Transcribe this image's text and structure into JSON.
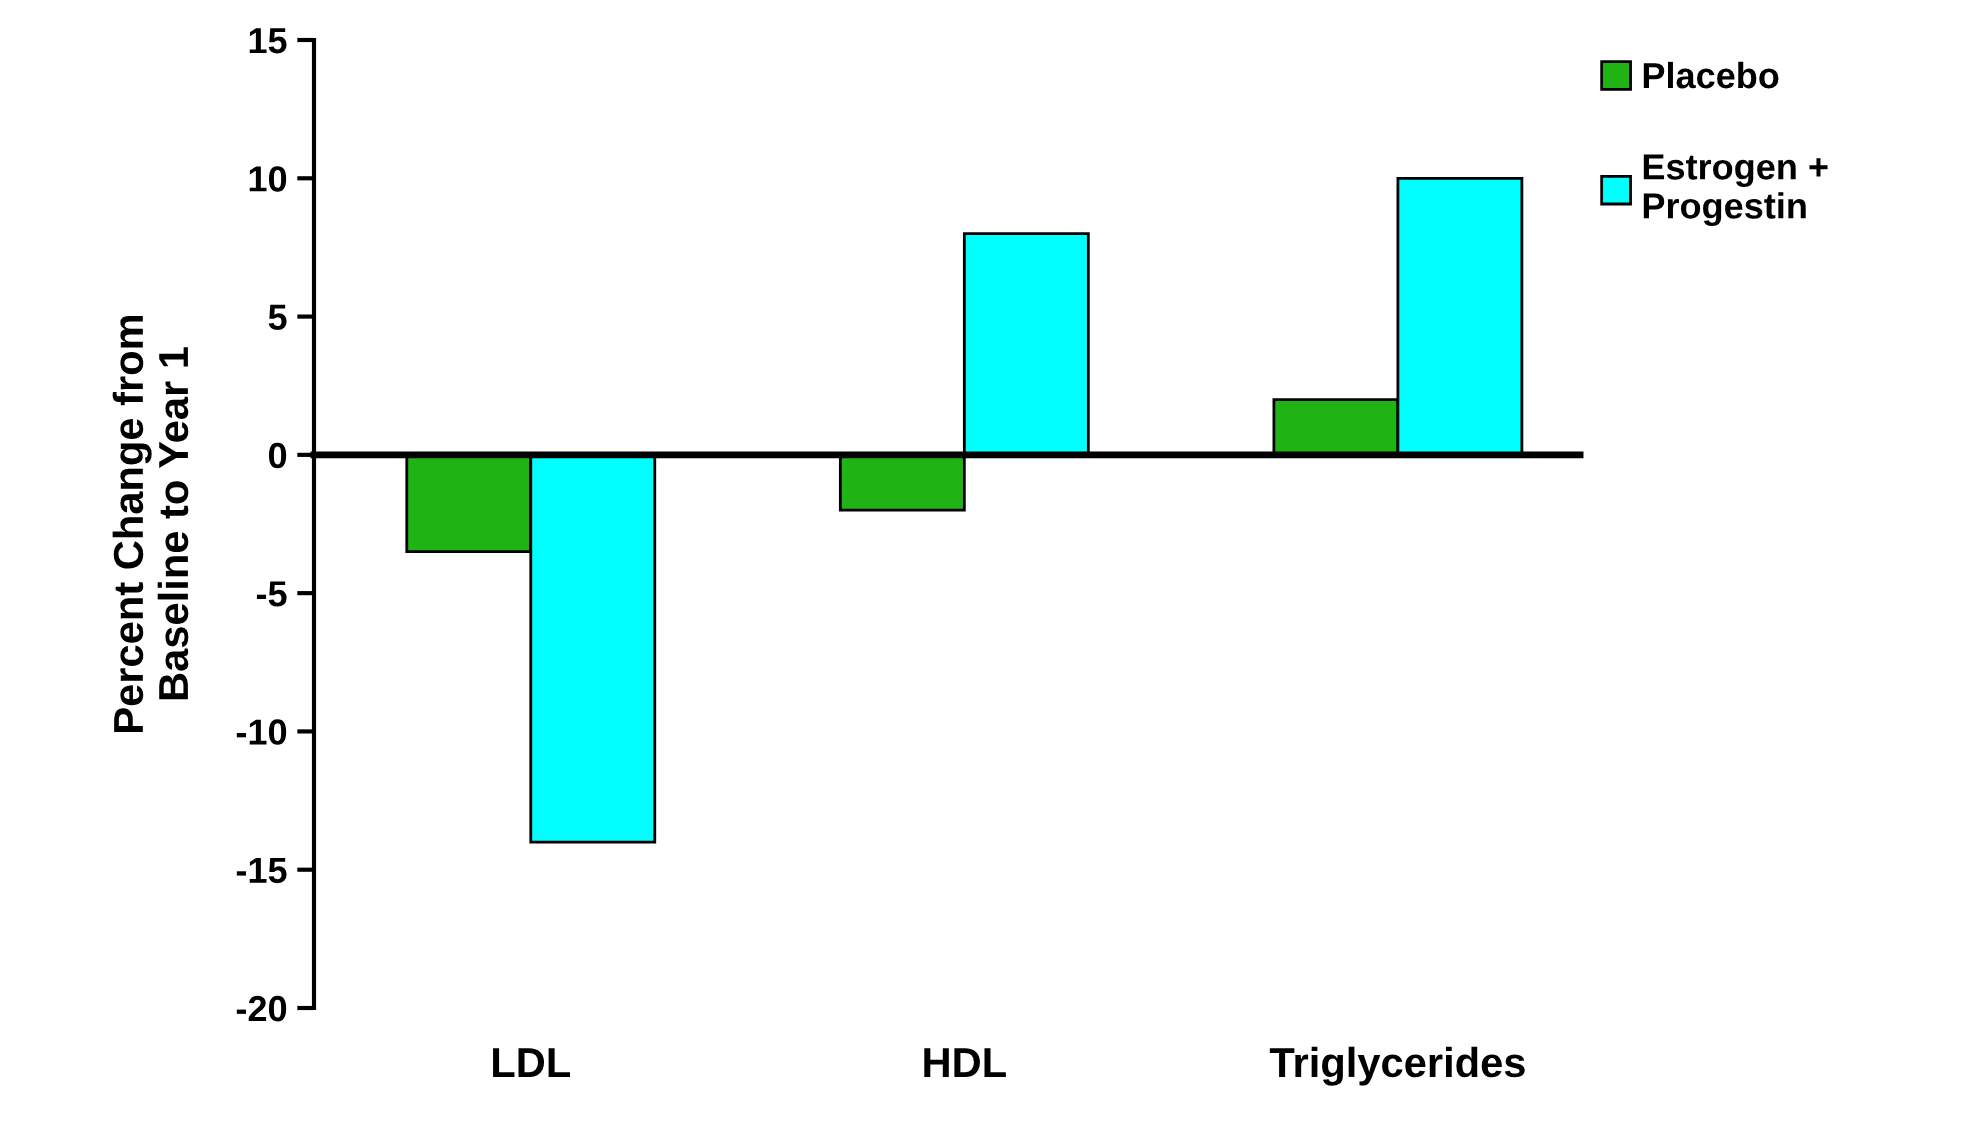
{
  "chart_data": {
    "type": "bar",
    "ylabel": "Percent Change from\nBaseline to Year 1",
    "categories": [
      "LDL",
      "HDL",
      "Triglycerides"
    ],
    "series": [
      {
        "name": "Placebo",
        "color": "#1fb414",
        "values": [
          -3.5,
          -2,
          2
        ]
      },
      {
        "name": "Estrogen +\nProgestin",
        "color": "#00ffff",
        "values": [
          -14,
          8,
          10
        ]
      }
    ],
    "ylim": [
      -20,
      15
    ],
    "yticks": [
      -20,
      -15,
      -10,
      -5,
      0,
      5,
      10,
      15
    ],
    "legend": "top right"
  }
}
